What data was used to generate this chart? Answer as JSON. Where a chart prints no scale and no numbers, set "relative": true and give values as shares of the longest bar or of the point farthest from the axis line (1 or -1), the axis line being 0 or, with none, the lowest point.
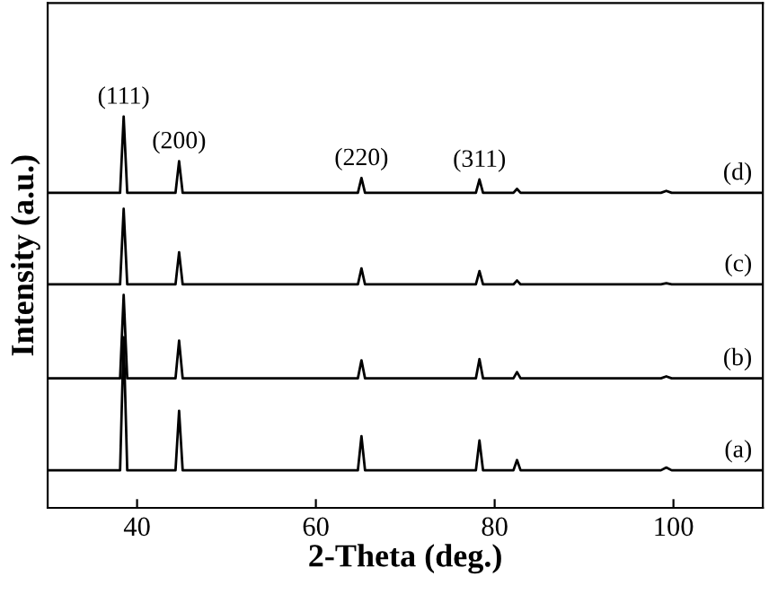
{
  "chart_data": {
    "type": "line",
    "xlabel": "2-Theta (deg.)",
    "ylabel": "Intensity (a.u.)",
    "relative": true,
    "xlim": [
      30,
      110
    ],
    "xticks": [
      40,
      60,
      80,
      100
    ],
    "tick_labels": "x",
    "grid": false,
    "legend": false,
    "marker": "none",
    "line_style": "solid",
    "x": [
      30,
      38.1,
      38.5,
      38.9,
      44.3,
      44.7,
      45.1,
      64.7,
      65.1,
      65.5,
      77.9,
      78.3,
      78.7,
      82.1,
      82.5,
      82.9,
      98.6,
      99.2,
      99.8,
      110
    ],
    "series": [
      {
        "name": "(a)",
        "color": "#000000",
        "values": [
          0.096,
          0.096,
          0.436,
          0.096,
          0.096,
          0.248,
          0.096,
          0.096,
          0.183,
          0.096,
          0.096,
          0.172,
          0.096,
          0.096,
          0.122,
          0.096,
          0.096,
          0.103,
          0.096,
          0.096
        ]
      },
      {
        "name": "(b)",
        "color": "#000000",
        "values": [
          0.331,
          0.331,
          0.544,
          0.331,
          0.331,
          0.427,
          0.331,
          0.331,
          0.377,
          0.331,
          0.331,
          0.38,
          0.331,
          0.331,
          0.347,
          0.331,
          0.331,
          0.336,
          0.331,
          0.331
        ]
      },
      {
        "name": "(c)",
        "color": "#000000",
        "values": [
          0.571,
          0.571,
          0.764,
          0.571,
          0.571,
          0.653,
          0.571,
          0.571,
          0.612,
          0.571,
          0.571,
          0.605,
          0.571,
          0.571,
          0.581,
          0.571,
          0.571,
          0.574,
          0.571,
          0.571
        ]
      },
      {
        "name": "(d)",
        "color": "#000000",
        "values": [
          0.805,
          0.805,
          1.0,
          0.805,
          0.805,
          0.886,
          0.805,
          0.805,
          0.843,
          0.805,
          0.805,
          0.839,
          0.805,
          0.805,
          0.815,
          0.805,
          0.805,
          0.81,
          0.805,
          0.805
        ]
      }
    ],
    "annotations": [
      {
        "text": "(111)",
        "x": 38.5,
        "y": 1.0
      },
      {
        "text": "(200)",
        "x": 44.7,
        "y": 0.886
      },
      {
        "text": "(220)",
        "x": 65.1,
        "y": 0.843
      },
      {
        "text": "(311)",
        "x": 78.3,
        "y": 0.839
      }
    ]
  }
}
